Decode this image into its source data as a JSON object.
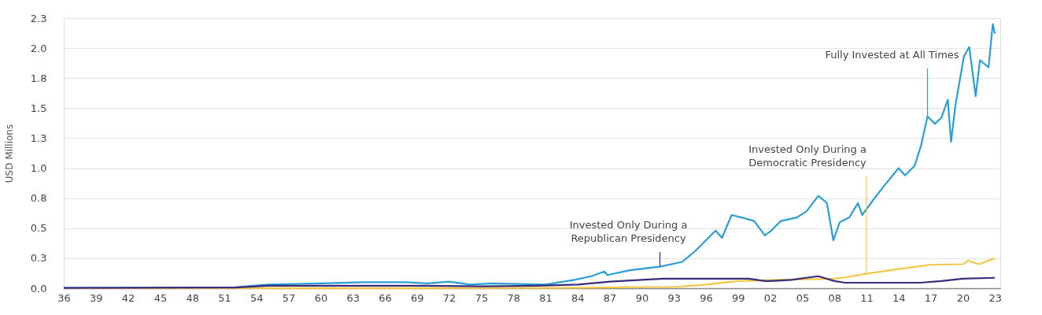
{
  "chart_data": {
    "type": "line",
    "ylabel": "USD Millions",
    "xlim": [
      1936,
      2023.5
    ],
    "ylim": [
      0,
      2.25
    ],
    "xticks": [
      {
        "value": 1936,
        "label": "36"
      },
      {
        "value": 1939,
        "label": "39"
      },
      {
        "value": 1942,
        "label": "42"
      },
      {
        "value": 1945,
        "label": "45"
      },
      {
        "value": 1948,
        "label": "48"
      },
      {
        "value": 1951,
        "label": "51"
      },
      {
        "value": 1954,
        "label": "54"
      },
      {
        "value": 1957,
        "label": "57"
      },
      {
        "value": 1960,
        "label": "60"
      },
      {
        "value": 1963,
        "label": "63"
      },
      {
        "value": 1966,
        "label": "66"
      },
      {
        "value": 1969,
        "label": "69"
      },
      {
        "value": 1972,
        "label": "72"
      },
      {
        "value": 1975,
        "label": "75"
      },
      {
        "value": 1978,
        "label": "78"
      },
      {
        "value": 1981,
        "label": "81"
      },
      {
        "value": 1984,
        "label": "84"
      },
      {
        "value": 1987,
        "label": "87"
      },
      {
        "value": 1990,
        "label": "90"
      },
      {
        "value": 1993,
        "label": "93"
      },
      {
        "value": 1996,
        "label": "96"
      },
      {
        "value": 1999,
        "label": "99"
      },
      {
        "value": 2002,
        "label": "02"
      },
      {
        "value": 2005,
        "label": "05"
      },
      {
        "value": 2008,
        "label": "08"
      },
      {
        "value": 2011,
        "label": "11"
      },
      {
        "value": 2014,
        "label": "14"
      },
      {
        "value": 2017,
        "label": "17"
      },
      {
        "value": 2020,
        "label": "20"
      },
      {
        "value": 2023,
        "label": "23"
      }
    ],
    "yticks": [
      {
        "value": 0,
        "label": "0.0"
      },
      {
        "value": 0.25,
        "label": "0.3"
      },
      {
        "value": 0.5,
        "label": "0.5"
      },
      {
        "value": 0.75,
        "label": "0.8"
      },
      {
        "value": 1.0,
        "label": "1.0"
      },
      {
        "value": 1.25,
        "label": "1.3"
      },
      {
        "value": 1.5,
        "label": "1.5"
      },
      {
        "value": 1.75,
        "label": "1.8"
      },
      {
        "value": 2.0,
        "label": "2.0"
      },
      {
        "value": 2.25,
        "label": "2.3"
      }
    ],
    "grid": "y",
    "legend": false,
    "marker": "none",
    "line_style": "solid",
    "series": [
      {
        "color": "#2a9fd6",
        "x": [
          1936,
          1945,
          1952,
          1955,
          1960,
          1964,
          1968,
          1970,
          1972,
          1974,
          1976,
          1981,
          1983.7,
          1985.3,
          1986.5,
          1986.8,
          1988.9,
          1991.7,
          1993.8,
          1995,
          1996.9,
          1997.5,
          1998.4,
          1999.3,
          2000.5,
          2001.5,
          2002.1,
          2003,
          2004.5,
          2005.4,
          2006.5,
          2007.3,
          2007.9,
          2008.5,
          2009.4,
          2010.2,
          2010.6,
          2011.5,
          2012.8,
          2014,
          2014.6,
          2015.5,
          2016.1,
          2016.7,
          2017.4,
          2018,
          2018.6,
          2018.9,
          2019.3,
          2020.1,
          2020.6,
          2021.2,
          2021.6,
          2022.4,
          2022.8,
          2023
        ],
        "values": [
          0.003,
          0.005,
          0.008,
          0.03,
          0.04,
          0.05,
          0.05,
          0.04,
          0.055,
          0.03,
          0.04,
          0.03,
          0.07,
          0.1,
          0.14,
          0.11,
          0.15,
          0.18,
          0.22,
          0.31,
          0.48,
          0.42,
          0.61,
          0.59,
          0.56,
          0.44,
          0.48,
          0.56,
          0.59,
          0.64,
          0.77,
          0.71,
          0.4,
          0.55,
          0.59,
          0.71,
          0.61,
          0.72,
          0.87,
          1.0,
          0.94,
          1.02,
          1.19,
          1.43,
          1.37,
          1.42,
          1.57,
          1.22,
          1.52,
          1.93,
          2.01,
          1.6,
          1.9,
          1.84,
          2.2,
          2.12
        ]
      },
      {
        "color": "#f2c744",
        "x": [
          1936,
          1982,
          1985,
          1990,
          1993,
          1996,
          1999,
          2003,
          2008,
          2009,
          2011,
          2014,
          2017,
          2020,
          2020.5,
          2021.5,
          2023
        ],
        "values": [
          0.0,
          0.002,
          0.005,
          0.01,
          0.01,
          0.03,
          0.06,
          0.07,
          0.08,
          0.09,
          0.12,
          0.16,
          0.195,
          0.2,
          0.23,
          0.2,
          0.25
        ]
      },
      {
        "color": "#3b2c7e",
        "x": [
          1936,
          1952,
          1955,
          1960,
          1965,
          1970,
          1975,
          1980,
          1984,
          1987,
          1990,
          1992,
          1996,
          2000,
          2001.5,
          2002,
          2004,
          2006.5,
          2008,
          2009,
          2016,
          2018,
          2020,
          2023
        ],
        "values": [
          0.003,
          0.006,
          0.02,
          0.02,
          0.02,
          0.02,
          0.015,
          0.02,
          0.03,
          0.055,
          0.07,
          0.08,
          0.08,
          0.08,
          0.06,
          0.06,
          0.07,
          0.1,
          0.06,
          0.046,
          0.046,
          0.06,
          0.08,
          0.087
        ]
      }
    ],
    "annotations": [
      {
        "text": "Invested Only During a\nRepublican Presidency",
        "x": 1991.7,
        "y": 0.18
      },
      {
        "text": "Invested Only During a\nDemocratic Presidency",
        "x": 2011,
        "y": 0.12
      },
      {
        "text": "Fully Invested at All Times",
        "x": 2016.7,
        "y": 1.43
      }
    ]
  }
}
